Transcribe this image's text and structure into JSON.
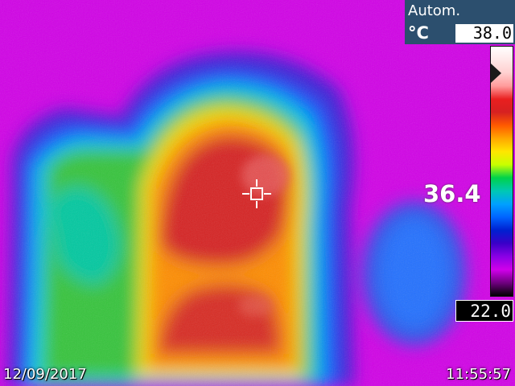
{
  "header": {
    "mode": "Autom.",
    "unit": "°C"
  },
  "scale": {
    "max_temperature": "38.0",
    "min_temperature": "22.0",
    "colors": [
      "#ffffff",
      "#ffe8e8",
      "#ffd0d0",
      "#ff9b9b",
      "#e91f1f",
      "#d62121",
      "#ff5a00",
      "#ffa600",
      "#ffe600",
      "#c8ff00",
      "#00d24a",
      "#00c8b4",
      "#00a0ff",
      "#0064ff",
      "#0020d0",
      "#3a00c8",
      "#8a00e6",
      "#d000ea",
      "#700080",
      "#000000"
    ]
  },
  "measurement": {
    "spot_temperature": "36.4"
  },
  "footer": {
    "date": "12/09/2017",
    "time": "11:55:57"
  }
}
